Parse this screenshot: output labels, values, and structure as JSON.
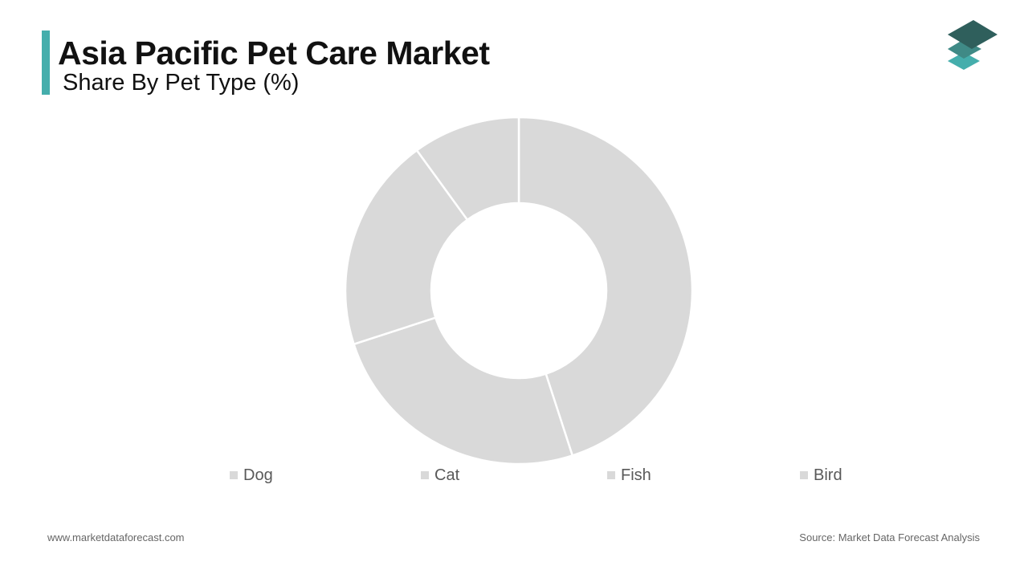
{
  "header": {
    "title": "Asia Pacific Pet Care Market",
    "subtitle": "Share By Pet Type (%)",
    "accent_color": "#45aeac"
  },
  "logo": {
    "icon": "stacked-layers-logo-icon",
    "colors": [
      "#2f5f5c",
      "#3f8a86",
      "#45aeac"
    ]
  },
  "chart_data": {
    "type": "pie",
    "donut": true,
    "categories": [
      "Dog",
      "Cat",
      "Fish",
      "Bird"
    ],
    "values": [
      45,
      25,
      20,
      10
    ],
    "slice_color": "#d9d9d9",
    "separator_color": "#ffffff",
    "legend_position": "bottom"
  },
  "footer": {
    "website": "www.marketdataforecast.com",
    "source": "Source: Market Data Forecast Analysis"
  }
}
